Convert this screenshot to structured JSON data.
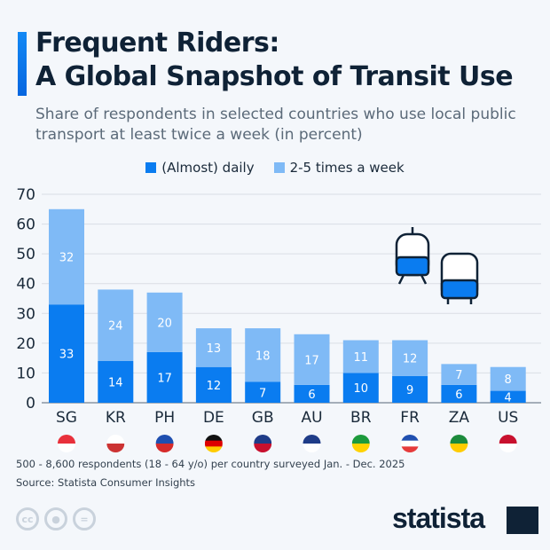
{
  "header": {
    "title_line1": "Frequent Riders:",
    "title_line2": "A Global Snapshot of Transit Use",
    "subtitle": "Share of respondents in selected countries who use local public transport at least twice a week (in percent)"
  },
  "chart_data": {
    "type": "bar",
    "stacked": true,
    "categories": [
      "SG",
      "KR",
      "PH",
      "DE",
      "GB",
      "AU",
      "BR",
      "FR",
      "ZA",
      "US"
    ],
    "series": [
      {
        "name": "(Almost) daily",
        "color": "#0a7cf0",
        "values": [
          33,
          14,
          17,
          12,
          7,
          6,
          10,
          9,
          6,
          4
        ]
      },
      {
        "name": "2-5 times a week",
        "color": "#7fbaf6",
        "values": [
          32,
          24,
          20,
          13,
          18,
          17,
          11,
          12,
          7,
          8
        ]
      }
    ],
    "ylim": [
      0,
      70
    ],
    "yticks": [
      "0",
      "10",
      "20",
      "30",
      "40",
      "50",
      "60",
      "70"
    ],
    "grid": true,
    "legend": "top",
    "xlabel": "",
    "ylabel": ""
  },
  "flags": [
    "singapore-flag",
    "south-korea-flag",
    "philippines-flag",
    "germany-flag",
    "uk-flag",
    "australia-flag",
    "brazil-flag",
    "france-flag",
    "south-africa-flag",
    "usa-flag"
  ],
  "footer": {
    "note": "500 - 8,600 respondents (18 - 64 y/o) per country surveyed Jan. - Dec. 2025",
    "source": "Source: Statista Consumer Insights",
    "cc": "cc",
    "logo": "statista"
  }
}
